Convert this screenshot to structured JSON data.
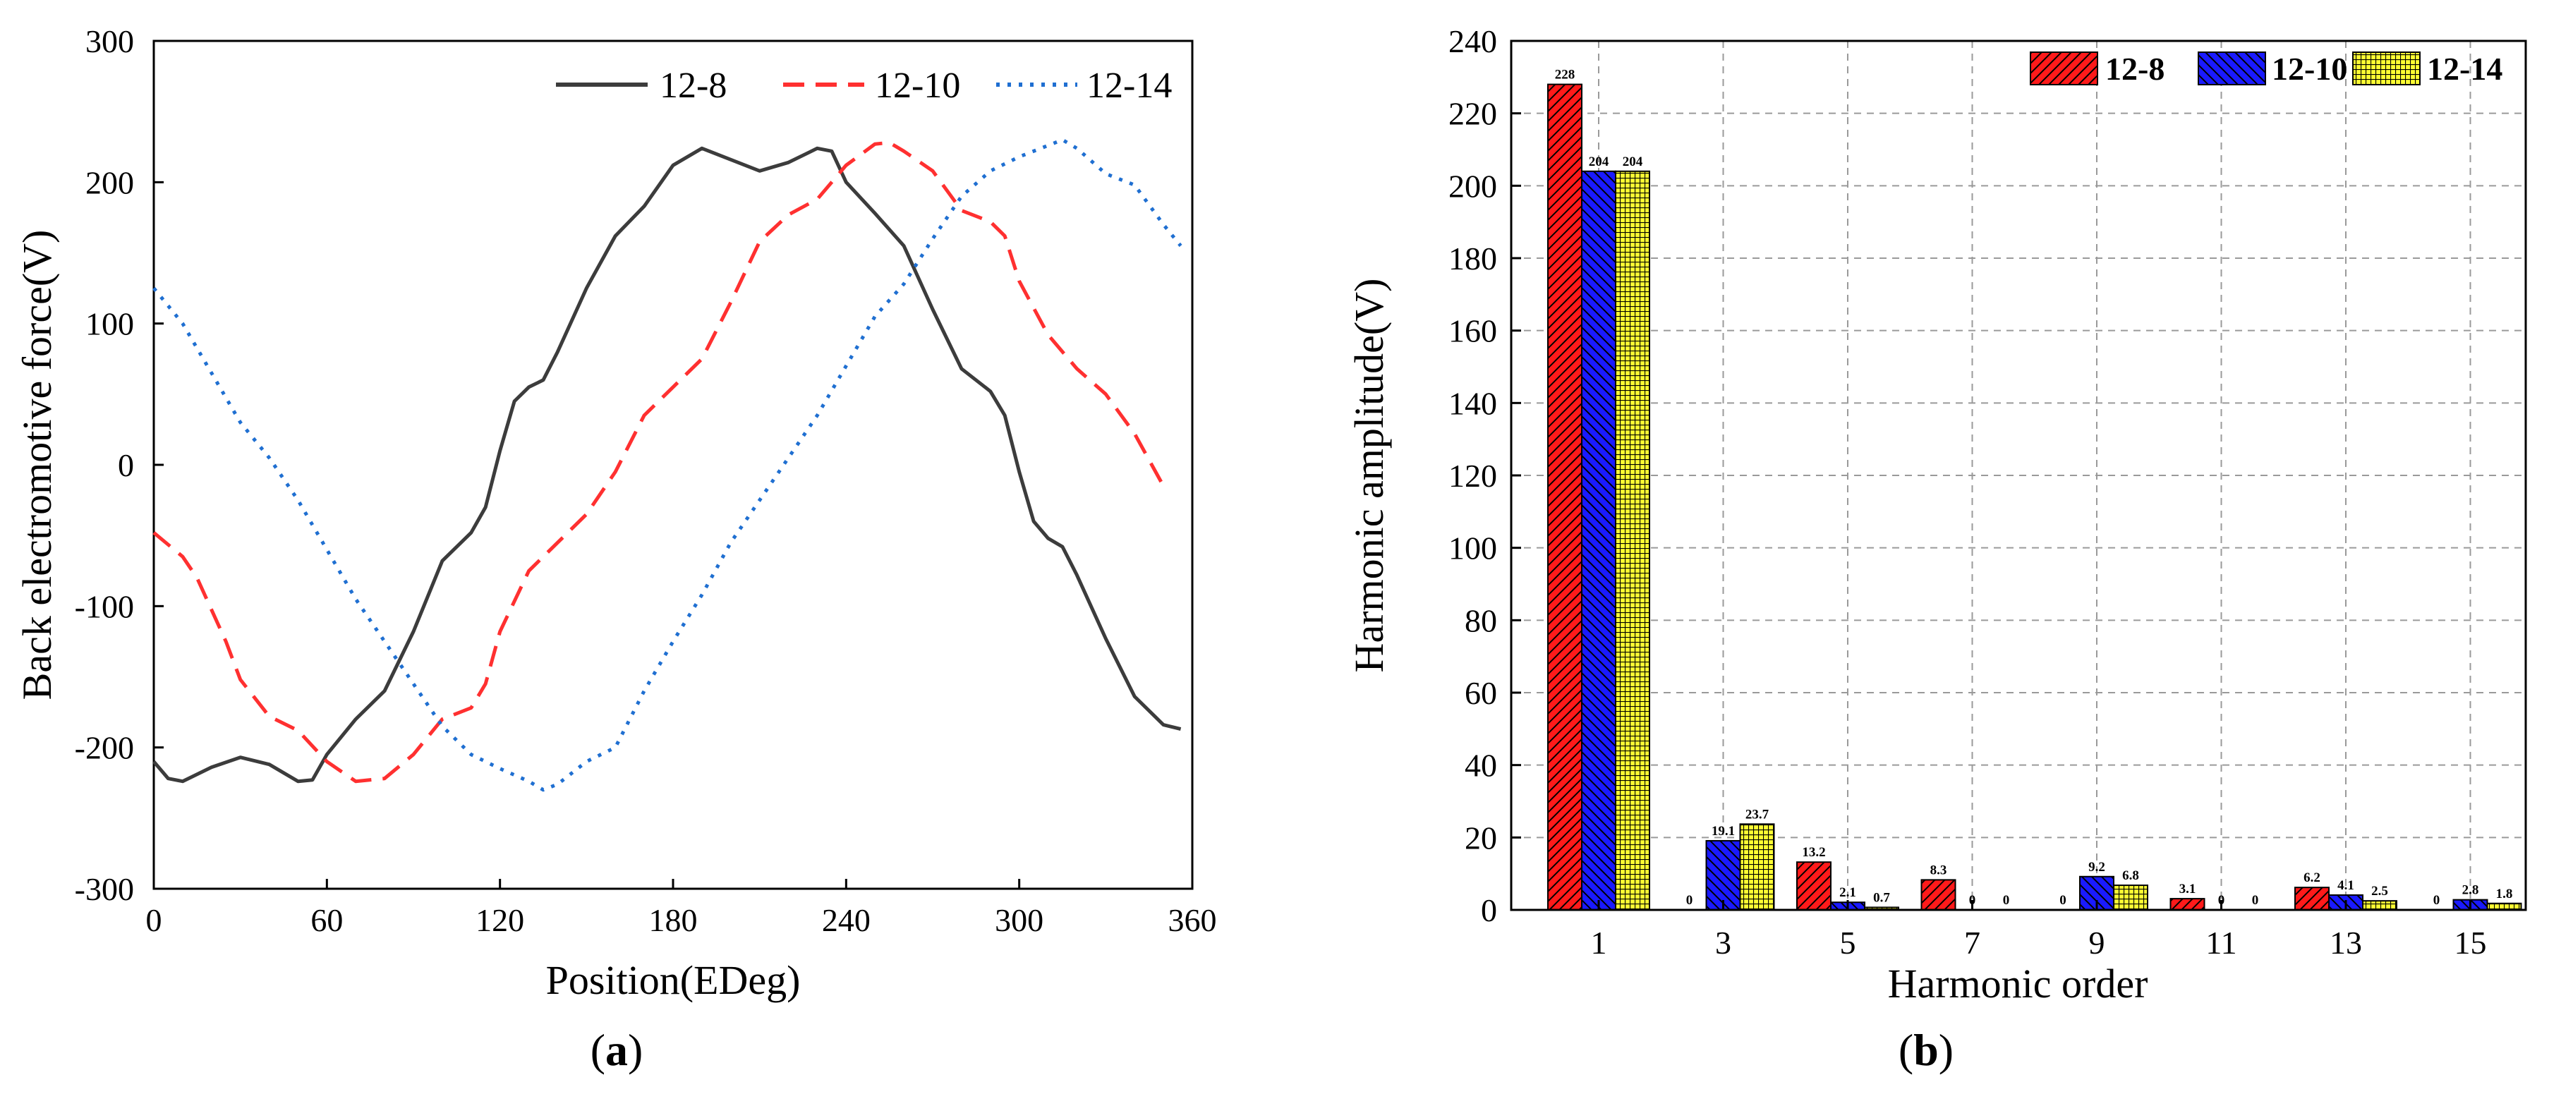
{
  "chart_data": [
    {
      "type": "line",
      "panel": "(a)",
      "panel_letter": "a",
      "xlabel": "Position(EDeg)",
      "ylabel": "Back electromotive force(V)",
      "xlim": [
        0,
        360
      ],
      "ylim": [
        -300,
        300
      ],
      "x_ticks": [
        "0",
        "60",
        "120",
        "180",
        "240",
        "300",
        "360"
      ],
      "y_ticks": [
        "-300",
        "-200",
        "-100",
        "0",
        "100",
        "200",
        "300"
      ],
      "legend_position": "top-right",
      "series": [
        {
          "name": "12-8",
          "color": "#3c3c3c",
          "style": "solid",
          "points": [
            [
              0,
              -210
            ],
            [
              5,
              -222
            ],
            [
              10,
              -224
            ],
            [
              20,
              -214
            ],
            [
              30,
              -207
            ],
            [
              40,
              -212
            ],
            [
              50,
              -224
            ],
            [
              55,
              -223
            ],
            [
              60,
              -205
            ],
            [
              70,
              -180
            ],
            [
              80,
              -160
            ],
            [
              90,
              -118
            ],
            [
              100,
              -68
            ],
            [
              110,
              -48
            ],
            [
              115,
              -30
            ],
            [
              120,
              10
            ],
            [
              125,
              45
            ],
            [
              130,
              55
            ],
            [
              135,
              60
            ],
            [
              140,
              80
            ],
            [
              150,
              125
            ],
            [
              160,
              162
            ],
            [
              170,
              183
            ],
            [
              180,
              212
            ],
            [
              190,
              224
            ],
            [
              200,
              216
            ],
            [
              210,
              208
            ],
            [
              220,
              214
            ],
            [
              230,
              224
            ],
            [
              235,
              222
            ],
            [
              240,
              200
            ],
            [
              250,
              178
            ],
            [
              260,
              155
            ],
            [
              270,
              110
            ],
            [
              280,
              68
            ],
            [
              290,
              52
            ],
            [
              295,
              35
            ],
            [
              300,
              -5
            ],
            [
              305,
              -40
            ],
            [
              310,
              -52
            ],
            [
              315,
              -58
            ],
            [
              320,
              -78
            ],
            [
              330,
              -123
            ],
            [
              340,
              -164
            ],
            [
              350,
              -184
            ],
            [
              356,
              -187
            ]
          ]
        },
        {
          "name": "12-10",
          "color": "#ff3030",
          "style": "dashed",
          "points": [
            [
              0,
              -48
            ],
            [
              10,
              -65
            ],
            [
              15,
              -80
            ],
            [
              25,
              -125
            ],
            [
              30,
              -152
            ],
            [
              40,
              -178
            ],
            [
              50,
              -188
            ],
            [
              60,
              -210
            ],
            [
              70,
              -224
            ],
            [
              80,
              -222
            ],
            [
              90,
              -205
            ],
            [
              100,
              -180
            ],
            [
              110,
              -172
            ],
            [
              115,
              -155
            ],
            [
              120,
              -118
            ],
            [
              130,
              -75
            ],
            [
              140,
              -55
            ],
            [
              150,
              -35
            ],
            [
              160,
              -5
            ],
            [
              170,
              35
            ],
            [
              180,
              55
            ],
            [
              190,
              75
            ],
            [
              200,
              115
            ],
            [
              210,
              158
            ],
            [
              220,
              177
            ],
            [
              230,
              188
            ],
            [
              240,
              212
            ],
            [
              250,
              227
            ],
            [
              255,
              228
            ],
            [
              260,
              222
            ],
            [
              270,
              208
            ],
            [
              280,
              180
            ],
            [
              290,
              172
            ],
            [
              295,
              162
            ],
            [
              300,
              130
            ],
            [
              310,
              92
            ],
            [
              320,
              68
            ],
            [
              330,
              50
            ],
            [
              340,
              22
            ],
            [
              350,
              -15
            ]
          ]
        },
        {
          "name": "12-14",
          "color": "#1f6fd1",
          "style": "dotted",
          "points": [
            [
              0,
              125
            ],
            [
              10,
              100
            ],
            [
              20,
              65
            ],
            [
              30,
              30
            ],
            [
              40,
              5
            ],
            [
              50,
              -25
            ],
            [
              60,
              -60
            ],
            [
              70,
              -95
            ],
            [
              80,
              -125
            ],
            [
              90,
              -155
            ],
            [
              100,
              -185
            ],
            [
              110,
              -205
            ],
            [
              120,
              -215
            ],
            [
              130,
              -224
            ],
            [
              135,
              -230
            ],
            [
              140,
              -226
            ],
            [
              150,
              -210
            ],
            [
              160,
              -200
            ],
            [
              170,
              -160
            ],
            [
              180,
              -125
            ],
            [
              190,
              -92
            ],
            [
              200,
              -55
            ],
            [
              210,
              -25
            ],
            [
              220,
              5
            ],
            [
              230,
              35
            ],
            [
              240,
              70
            ],
            [
              250,
              105
            ],
            [
              260,
              128
            ],
            [
              270,
              160
            ],
            [
              280,
              190
            ],
            [
              290,
              208
            ],
            [
              300,
              218
            ],
            [
              310,
              226
            ],
            [
              315,
              230
            ],
            [
              320,
              224
            ],
            [
              330,
              206
            ],
            [
              340,
              198
            ],
            [
              350,
              170
            ],
            [
              356,
              155
            ]
          ]
        }
      ]
    },
    {
      "type": "bar",
      "panel": "(b)",
      "panel_letter": "b",
      "xlabel": "Harmonic order",
      "ylabel": "Harmonic amplitude(V)",
      "ylim": [
        0,
        240
      ],
      "y_ticks": [
        "0",
        "20",
        "40",
        "60",
        "80",
        "100",
        "120",
        "140",
        "160",
        "180",
        "200",
        "220",
        "240"
      ],
      "categories": [
        "1",
        "3",
        "5",
        "7",
        "9",
        "11",
        "13",
        "15"
      ],
      "grid": true,
      "legend_position": "top-right",
      "series": [
        {
          "name": "12-8",
          "color": "#ff1a1a",
          "pattern": "hatch-right",
          "values": [
            228,
            0,
            13.2,
            8.3,
            0,
            3.1,
            6.2,
            0
          ],
          "labels": [
            "228",
            "0",
            "13.2",
            "8.3",
            "0",
            "3.1",
            "6.2",
            "0"
          ]
        },
        {
          "name": "12-10",
          "color": "#1a1aff",
          "pattern": "hatch-left",
          "values": [
            204,
            19.1,
            2.1,
            0,
            9.2,
            0,
            4.1,
            2.8
          ],
          "labels": [
            "204",
            "19.1",
            "2.1",
            "0",
            "9.2",
            "0",
            "4.1",
            "2.8"
          ]
        },
        {
          "name": "12-14",
          "color": "#ffff33",
          "pattern": "grid",
          "values": [
            204,
            23.7,
            0.7,
            0,
            6.8,
            0,
            2.5,
            1.8
          ],
          "labels": [
            "204",
            "23.7",
            "0.7",
            "0",
            "6.8",
            "0",
            "2.5",
            "1.8"
          ]
        }
      ]
    }
  ]
}
